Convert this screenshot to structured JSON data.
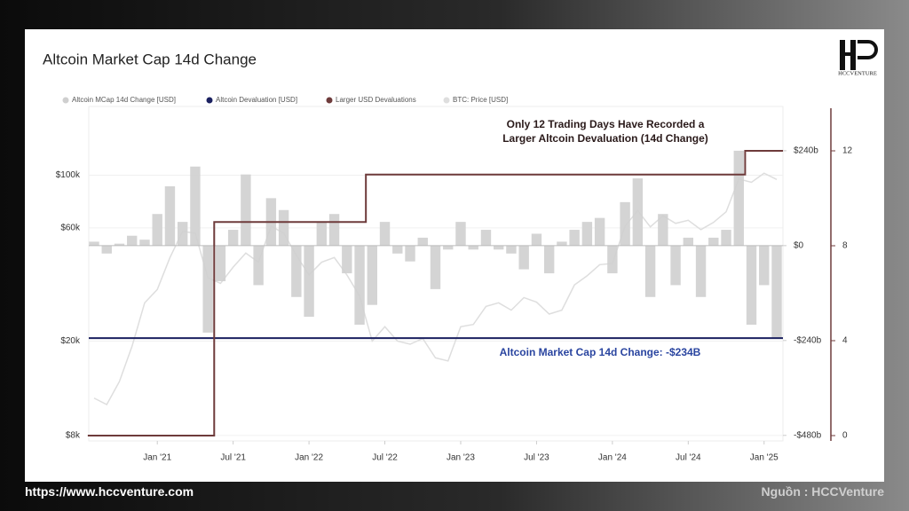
{
  "chart_data": {
    "type": "bar-line-combo",
    "title": "Altcoin Market Cap 14d Change",
    "annotations": [
      "Only 12 Trading Days Have Recorded a",
      "Larger Altcoin Devaluation (14d Change)",
      "Altcoin Market Cap 14d Change: -$234B"
    ],
    "x": [
      "2020-08",
      "2020-09",
      "2020-10",
      "2020-11",
      "2020-12",
      "2021-01",
      "2021-02",
      "2021-03",
      "2021-04",
      "2021-05",
      "2021-06",
      "2021-07",
      "2021-08",
      "2021-09",
      "2021-10",
      "2021-11",
      "2021-12",
      "2022-01",
      "2022-02",
      "2022-03",
      "2022-04",
      "2022-05",
      "2022-06",
      "2022-07",
      "2022-08",
      "2022-09",
      "2022-10",
      "2022-11",
      "2022-12",
      "2023-01",
      "2023-02",
      "2023-03",
      "2023-04",
      "2023-05",
      "2023-06",
      "2023-07",
      "2023-08",
      "2023-09",
      "2023-10",
      "2023-11",
      "2023-12",
      "2024-01",
      "2024-02",
      "2024-03",
      "2024-04",
      "2024-05",
      "2024-06",
      "2024-07",
      "2024-08",
      "2024-09",
      "2024-10",
      "2024-11",
      "2024-12",
      "2025-01",
      "2025-02"
    ],
    "xlim": [
      "2020-08",
      "2025-02"
    ],
    "xticks": [
      {
        "value": "2021-01",
        "label": "Jan '21"
      },
      {
        "value": "2021-07",
        "label": "Jul '21"
      },
      {
        "value": "2022-01",
        "label": "Jan '22"
      },
      {
        "value": "2022-07",
        "label": "Jul '22"
      },
      {
        "value": "2023-01",
        "label": "Jan '23"
      },
      {
        "value": "2023-07",
        "label": "Jul '23"
      },
      {
        "value": "2024-01",
        "label": "Jan '24"
      },
      {
        "value": "2024-07",
        "label": "Jul '24"
      },
      {
        "value": "2025-01",
        "label": "Jan '25"
      }
    ],
    "ylim": [
      7590,
      195000
    ],
    "log_scale": true,
    "yticks": [
      {
        "value": 8000,
        "label": "$8k"
      },
      {
        "value": 20000,
        "label": "$20k"
      },
      {
        "value": 60000,
        "label": "$60k"
      },
      {
        "value": 100000,
        "label": "$100k"
      }
    ],
    "y2lim": [
      -494,
      352
    ],
    "y2ticks": [
      {
        "value": 240,
        "label": "$240b"
      },
      {
        "value": 0,
        "label": "$0"
      },
      {
        "value": -240,
        "label": "-$240b"
      },
      {
        "value": -480,
        "label": "-$480b"
      }
    ],
    "y3lim": [
      -0.225,
      13.87
    ],
    "y3ticks": [
      0,
      4,
      8,
      12
    ],
    "grid": true,
    "series": [
      {
        "name": "Altcoin MCap 14d Change [USD]",
        "color": "#cfcfcf",
        "axis": "y2",
        "values": [
          10,
          -20,
          5,
          25,
          15,
          80,
          150,
          60,
          200,
          -220,
          -90,
          40,
          180,
          -100,
          120,
          90,
          -130,
          -180,
          60,
          80,
          -70,
          -200,
          -150,
          60,
          -20,
          -40,
          20,
          -110,
          -10,
          60,
          -10,
          40,
          -10,
          -20,
          -60,
          30,
          -70,
          10,
          40,
          60,
          70,
          -70,
          110,
          170,
          -130,
          80,
          -100,
          20,
          -130,
          20,
          40,
          240,
          -200,
          -100,
          -234
        ]
      },
      {
        "name": "Altcoin Devaluation [USD]",
        "color": "#1b2160",
        "axis": "y2",
        "value": -234
      },
      {
        "name": "Larger USD Devaluations",
        "color": "#6e3b3b",
        "axis": "y3",
        "values": [
          0,
          0,
          0,
          0,
          0,
          0,
          0,
          0,
          0,
          0,
          9,
          9,
          9,
          9,
          9,
          9,
          9,
          9,
          9,
          9,
          9,
          9,
          11,
          11,
          11,
          11,
          11,
          11,
          11,
          11,
          11,
          11,
          11,
          11,
          11,
          11,
          11,
          11,
          11,
          11,
          11,
          11,
          11,
          11,
          11,
          11,
          11,
          11,
          11,
          11,
          11,
          11,
          12,
          12,
          12
        ]
      },
      {
        "name": "BTC: Price [USD]",
        "color": "#dedede",
        "axis": "y",
        "values": [
          11500,
          10800,
          13500,
          19000,
          29000,
          33000,
          45000,
          58000,
          57000,
          37000,
          35000,
          41000,
          47000,
          43000,
          61000,
          57000,
          46000,
          38000,
          43000,
          45000,
          38000,
          31000,
          20000,
          23000,
          20000,
          19400,
          20500,
          17000,
          16500,
          23000,
          23500,
          28000,
          29000,
          27000,
          30500,
          29200,
          26000,
          27000,
          34500,
          37700,
          42000,
          42500,
          61000,
          71000,
          60600,
          67500,
          62700,
          64600,
          59000,
          63300,
          70200,
          96400,
          93400,
          102000,
          96000
        ]
      }
    ]
  },
  "footer": {
    "url": "https://www.hccventure.com",
    "source": "Nguồn : HCCVenture",
    "logo": "HCCVENTURE"
  }
}
